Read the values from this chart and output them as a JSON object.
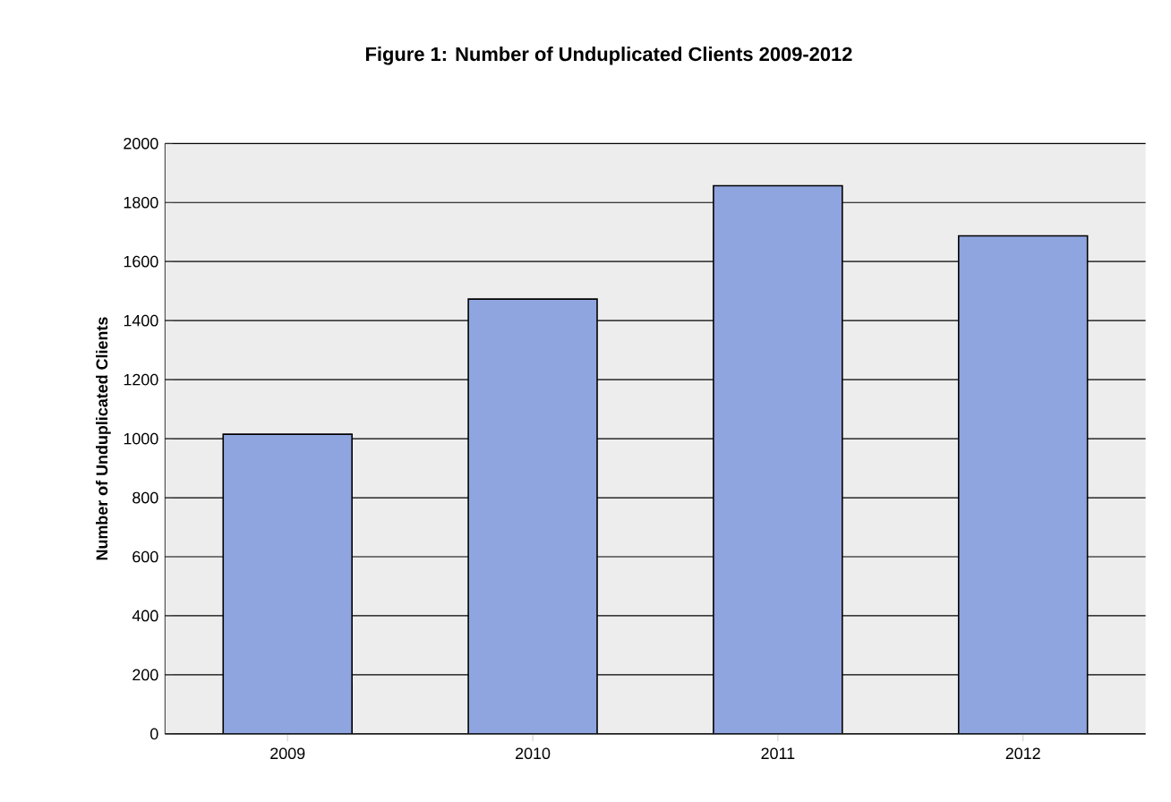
{
  "chart_data": {
    "type": "bar",
    "title": "Figure 1: Number of Unduplicated Clients 2009-2012",
    "ylabel": "Number of Unduplicated Clients",
    "categories": [
      "2009",
      "2010",
      "2011",
      "2012"
    ],
    "values": [
      1015,
      1473,
      1857,
      1687
    ],
    "color": "#8fa5e0",
    "ylim": [
      0,
      2000
    ],
    "yticks": [
      0,
      200,
      400,
      600,
      800,
      1000,
      1200,
      1400,
      1600,
      1800,
      2000
    ],
    "grid": "y"
  }
}
